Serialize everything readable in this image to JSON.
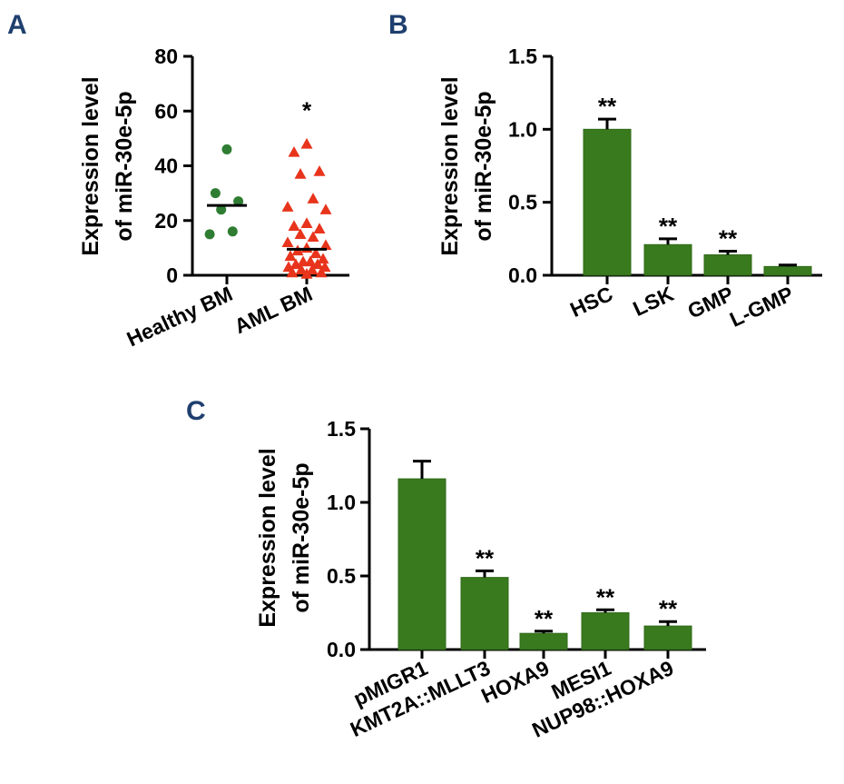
{
  "colors": {
    "axis": "#000000",
    "bar_fill": "#3a7a1f",
    "bar_stroke": "#2f6a17",
    "healthy_point": "#2e7d32",
    "aml_point": "#e8341c",
    "panel_label": "#1f3f6e"
  },
  "chart_data": [
    {
      "panel": "A",
      "type": "scatter",
      "ylabel_line1": "Expression level",
      "ylabel_line2": "of miR-30e-5p",
      "ylim": [
        0,
        80
      ],
      "yticks": [
        0,
        20,
        40,
        60,
        80
      ],
      "ytick_labels": [
        "0",
        "20",
        "40",
        "60",
        "80"
      ],
      "categories": [
        "Healthy BM",
        "AML BM"
      ],
      "groups": [
        {
          "name": "Healthy BM",
          "marker": "circle",
          "values": [
            46,
            30,
            27,
            24,
            16,
            15
          ],
          "mean": 25.5,
          "significance": ""
        },
        {
          "name": "AML BM",
          "marker": "triangle",
          "values": [
            48,
            45,
            38,
            37,
            28,
            25,
            24,
            19,
            18,
            17,
            15,
            14,
            12,
            11,
            10,
            9,
            8,
            7,
            6,
            5,
            5,
            4,
            4,
            3,
            3,
            2,
            2,
            1,
            1,
            0.5
          ],
          "mean": 9.5,
          "significance": "*"
        }
      ]
    },
    {
      "panel": "B",
      "type": "bar",
      "ylabel_line1": "Expression level",
      "ylabel_line2": "of miR-30e-5p",
      "ylim": [
        0,
        1.5
      ],
      "yticks": [
        0,
        0.5,
        1.0,
        1.5
      ],
      "ytick_labels": [
        "0.0",
        "0.5",
        "1.0",
        "1.5"
      ],
      "categories": [
        "HSC",
        "LSK",
        "GMP",
        "L-GMP"
      ],
      "values": [
        1.0,
        0.21,
        0.14,
        0.06
      ],
      "errors": [
        0.07,
        0.04,
        0.025,
        0.01
      ],
      "significance": [
        "**",
        "**",
        "**",
        ""
      ]
    },
    {
      "panel": "C",
      "type": "bar",
      "ylabel_line1": "Expression level",
      "ylabel_line2": "of miR-30e-5p",
      "ylim": [
        0,
        1.5
      ],
      "yticks": [
        0,
        0.5,
        1.0,
        1.5
      ],
      "ytick_labels": [
        "0.0",
        "0.5",
        "1.0",
        "1.5"
      ],
      "categories": [
        "pMIGR1",
        "KMT2A::MLLT3",
        "HOXA9",
        "MESI1",
        "NUP98::HOXA9"
      ],
      "values": [
        1.16,
        0.49,
        0.11,
        0.25,
        0.16
      ],
      "errors": [
        0.12,
        0.045,
        0.015,
        0.02,
        0.03
      ],
      "significance": [
        "",
        "**",
        "**",
        "**",
        "**"
      ]
    }
  ]
}
